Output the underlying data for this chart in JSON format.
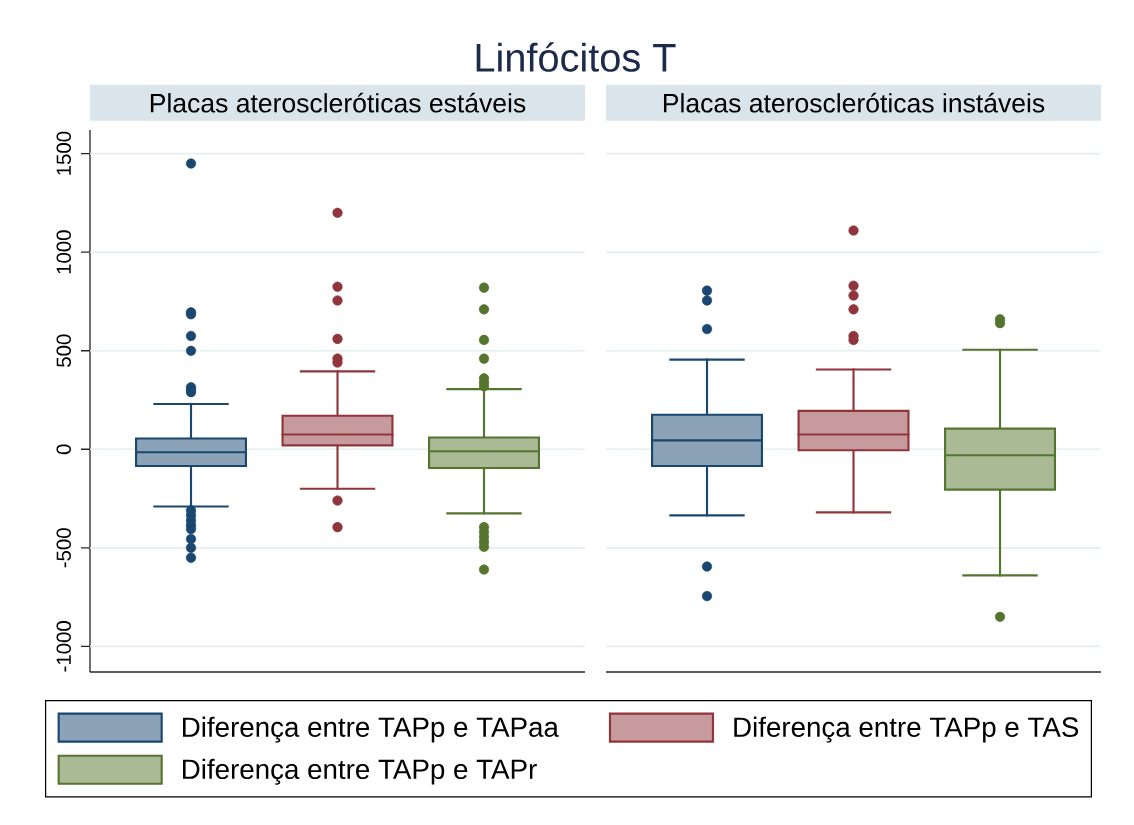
{
  "chart_data": {
    "type": "box",
    "title": "Linfócitos T",
    "categories": [
      "Placas ateroscleróticas estáveis",
      "Placas ateroscleróticas instáveis"
    ],
    "series": [
      {
        "name": "Diferença entre TAPp e TAPaa",
        "color": "#1a476f",
        "boxes": [
          {
            "low": -290,
            "q1": -85,
            "median": -15,
            "q3": 55,
            "high": 230,
            "outliers": [
              1450,
              695,
              685,
              575,
              500,
              315,
              300,
              290,
              -310,
              -335,
              -360,
              -385,
              -405,
              -455,
              -500,
              -550
            ]
          },
          {
            "low": -335,
            "q1": -85,
            "median": 45,
            "q3": 175,
            "high": 455,
            "outliers": [
              805,
              755,
              610,
              -595,
              -745
            ]
          }
        ]
      },
      {
        "name": "Diferença entre TAPp e TAS",
        "color": "#90353b",
        "boxes": [
          {
            "low": -200,
            "q1": 20,
            "median": 75,
            "q3": 170,
            "high": 395,
            "outliers": [
              1200,
              825,
              755,
              560,
              460,
              440,
              -260,
              -395
            ]
          },
          {
            "low": -320,
            "q1": -5,
            "median": 75,
            "q3": 195,
            "high": 405,
            "outliers": [
              1110,
              830,
              780,
              710,
              575,
              555
            ]
          }
        ]
      },
      {
        "name": "Diferença entre TAPp e TAPr",
        "color": "#55752f",
        "boxes": [
          {
            "low": -325,
            "q1": -95,
            "median": -10,
            "q3": 60,
            "high": 305,
            "outliers": [
              820,
              710,
              555,
              460,
              360,
              340,
              320,
              -395,
              -420,
              -445,
              -470,
              -495,
              -610
            ]
          },
          {
            "low": -640,
            "q1": -205,
            "median": -30,
            "q3": 105,
            "high": 505,
            "outliers": [
              660,
              640,
              -850
            ]
          }
        ]
      }
    ],
    "ylim": [
      -1130,
      1620
    ],
    "yticks": [
      -1000,
      -500,
      0,
      500,
      1000,
      1500
    ],
    "grid": "y",
    "legend": "bottom"
  }
}
